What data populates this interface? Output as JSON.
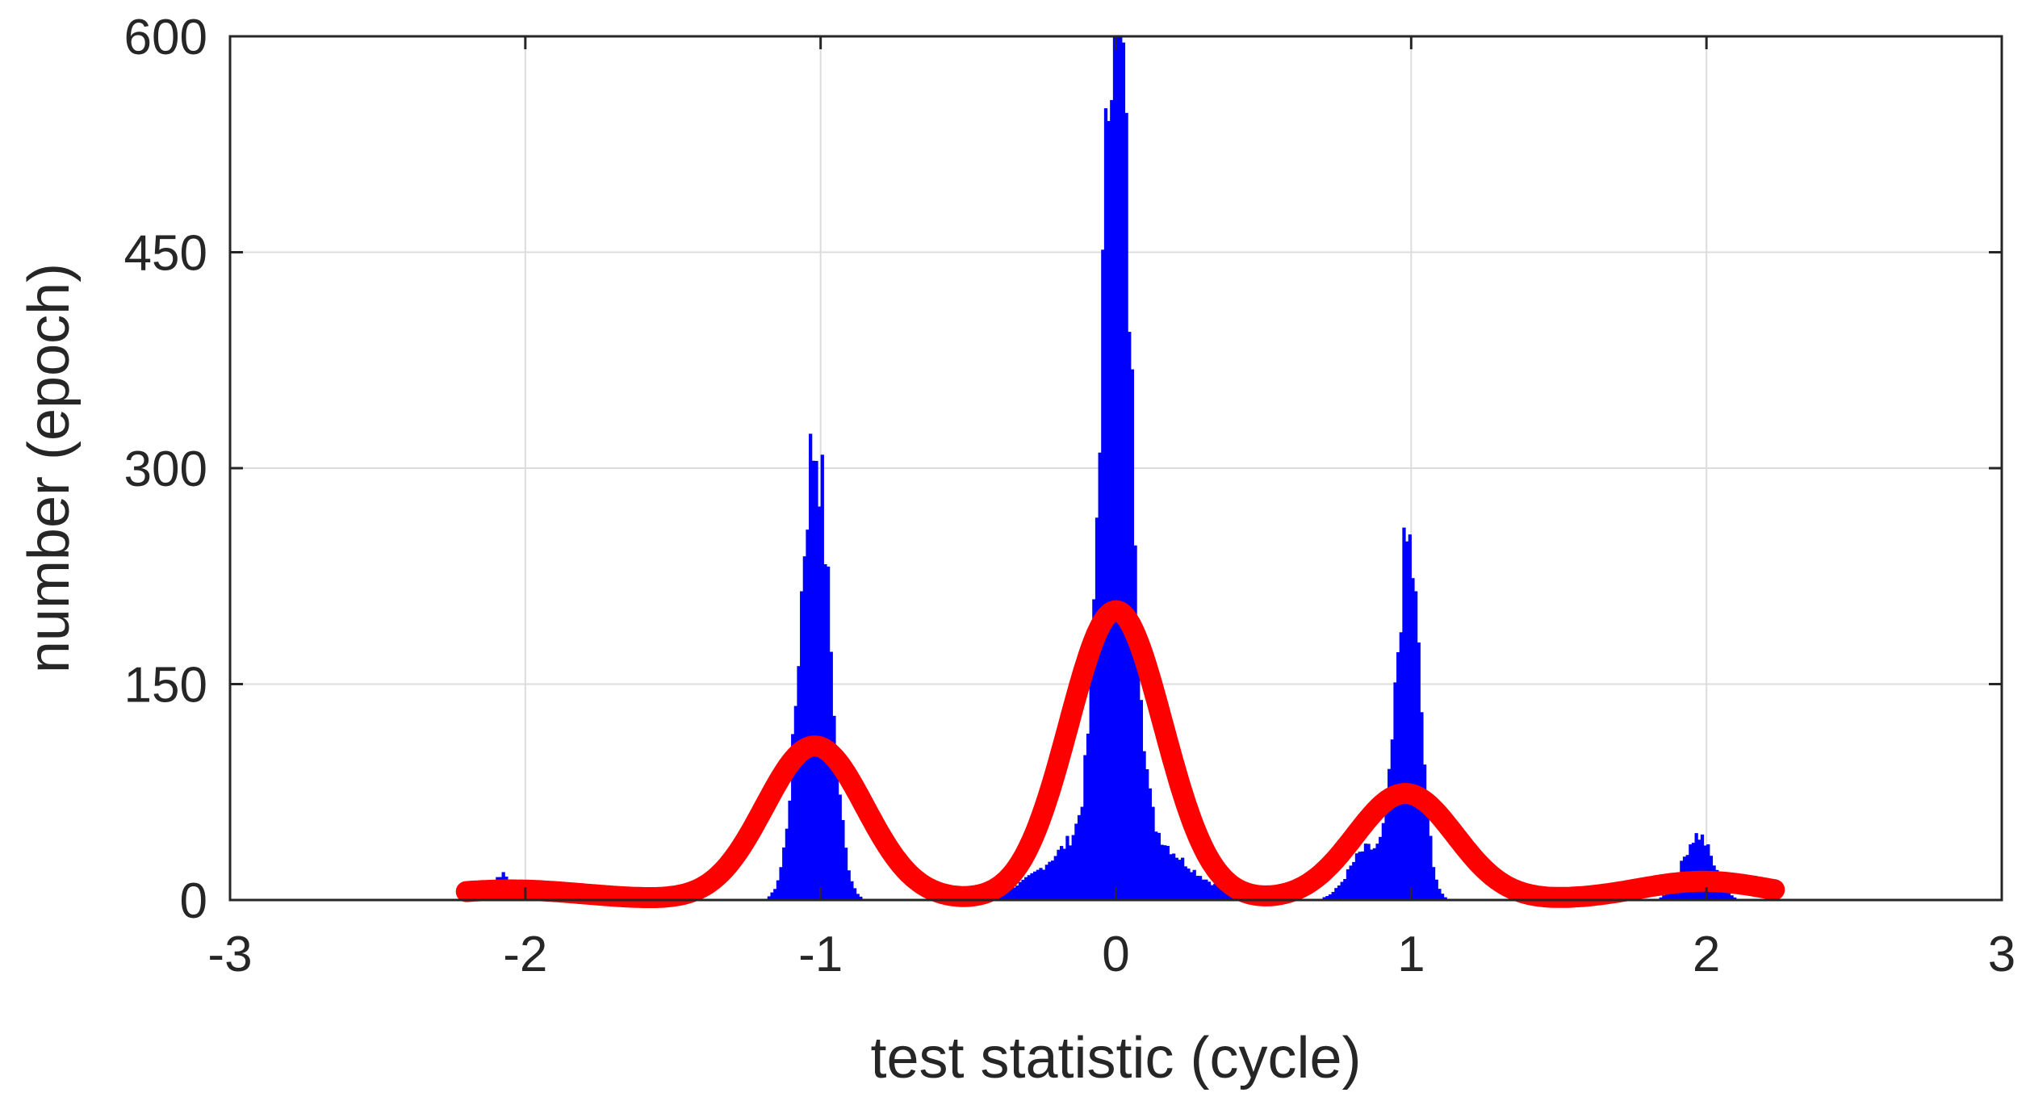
{
  "chart_data": {
    "type": "bar",
    "title": "",
    "xlabel": "test statistic (cycle)",
    "ylabel": "number (epoch)",
    "xlim": [
      -3,
      3
    ],
    "ylim": [
      0,
      600
    ],
    "xticks": [
      -3,
      -2,
      -1,
      0,
      1,
      2,
      3
    ],
    "xtick_labels": [
      "-3",
      "-2",
      "-1",
      "0",
      "1",
      "2",
      "3"
    ],
    "yticks": [
      0,
      150,
      300,
      450,
      600
    ],
    "ytick_labels": [
      "0",
      "150",
      "300",
      "450",
      "600"
    ],
    "grid": true,
    "series": [
      {
        "name": "histogram",
        "kind": "histogram",
        "color": "#0000ff",
        "bin_width": 0.01,
        "peaks": [
          {
            "center": -2.08,
            "height": 18,
            "sigma": 0.03
          },
          {
            "center": -1.96,
            "height": 10,
            "sigma": 0.03
          },
          {
            "center": -1.02,
            "height": 318,
            "sigma": 0.05
          },
          {
            "center": 0.0,
            "height": 600,
            "sigma": 0.045
          },
          {
            "center": 0.0,
            "height": 60,
            "sigma": 0.18
          },
          {
            "center": 0.99,
            "height": 245,
            "sigma": 0.04
          },
          {
            "center": 0.85,
            "height": 35,
            "sigma": 0.06
          },
          {
            "center": 1.97,
            "height": 45,
            "sigma": 0.05
          }
        ]
      },
      {
        "name": "fitted density",
        "kind": "line",
        "color": "#ff0000",
        "x_range": [
          -2.2,
          2.23
        ],
        "components": [
          {
            "center": -2.05,
            "height": 7,
            "sigma": 0.25
          },
          {
            "center": -1.02,
            "height": 107,
            "sigma": 0.17
          },
          {
            "center": 0.0,
            "height": 201,
            "sigma": 0.16
          },
          {
            "center": 0.98,
            "height": 74,
            "sigma": 0.17
          },
          {
            "center": 1.99,
            "height": 13,
            "sigma": 0.22
          }
        ]
      }
    ]
  }
}
